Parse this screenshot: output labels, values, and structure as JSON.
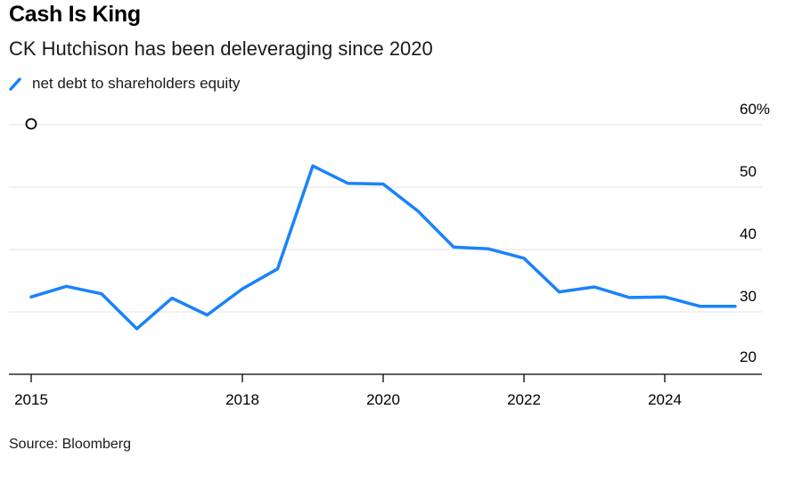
{
  "title": "Cash Is King",
  "subtitle": "CK Hutchison has been deleveraging since 2020",
  "source": "Source: Bloomberg",
  "colors": {
    "line": "#1a82fb",
    "grid": "#e3e3e3",
    "axis": "#000000"
  },
  "chart_data": {
    "type": "line",
    "title": "Cash Is King",
    "subtitle": "CK Hutchison has been deleveraging since 2020",
    "legend_position": "top-left",
    "grid": true,
    "y_axis_side": "right",
    "ylim": [
      20,
      60
    ],
    "xlim": [
      2015,
      2025.5
    ],
    "x_ticks": [
      2015,
      2018,
      2020,
      2022,
      2024
    ],
    "x_tick_labels": [
      "2015",
      "2018",
      "2020",
      "2022",
      "2024"
    ],
    "y_ticks": [
      20,
      30,
      40,
      50,
      60
    ],
    "y_tick_labels": [
      "20",
      "30",
      "40",
      "50",
      "60%"
    ],
    "series": [
      {
        "name": "net debt to shareholders equity",
        "x": [
          2015.0,
          2015.5,
          2016.0,
          2016.5,
          2017.0,
          2017.5,
          2018.0,
          2018.5,
          2019.0,
          2019.5,
          2020.0,
          2020.5,
          2021.0,
          2021.5,
          2022.0,
          2022.5,
          2023.0,
          2023.5,
          2024.0,
          2024.5,
          2025.0
        ],
        "y": [
          32.4,
          34.1,
          32.9,
          27.3,
          32.2,
          29.5,
          33.7,
          36.9,
          53.4,
          50.6,
          50.5,
          46.1,
          40.4,
          40.1,
          38.6,
          33.2,
          34.0,
          32.3,
          32.4,
          30.9,
          30.9
        ]
      }
    ]
  }
}
